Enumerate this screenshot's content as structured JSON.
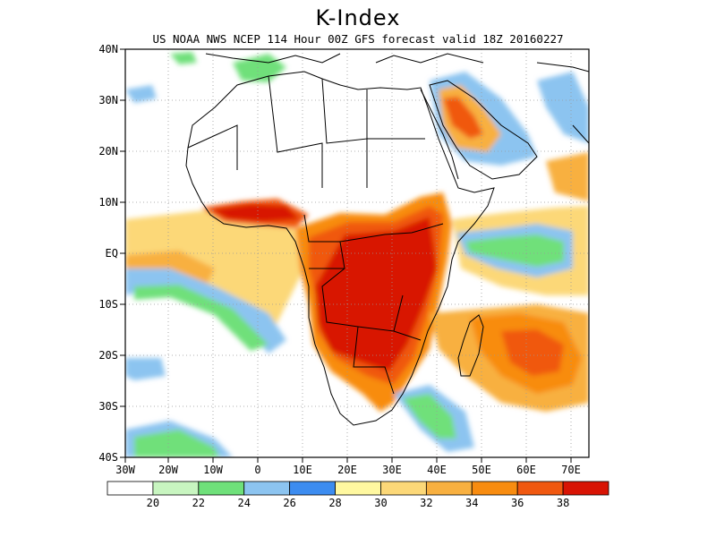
{
  "title": "K-Index",
  "subtitle": "US NOAA NWS NCEP 114 Hour 00Z GFS forecast valid 18Z 20160227",
  "lat_labels": [
    "40N",
    "30N",
    "20N",
    "10N",
    "EQ",
    "10S",
    "20S",
    "30S",
    "40S"
  ],
  "lon_labels": [
    "30W",
    "20W",
    "10W",
    "0",
    "10E",
    "20E",
    "30E",
    "40E",
    "50E",
    "60E",
    "70E"
  ],
  "colorbar": {
    "colors": [
      "#ffffff",
      "#c8f5c0",
      "#6fe07a",
      "#8cc4f0",
      "#3c8cf0",
      "#fff8a0",
      "#fcd878",
      "#f8b040",
      "#f88c10",
      "#f05810",
      "#d81404"
    ],
    "labels": [
      "20",
      "22",
      "24",
      "26",
      "28",
      "30",
      "32",
      "34",
      "36",
      "38"
    ]
  }
}
